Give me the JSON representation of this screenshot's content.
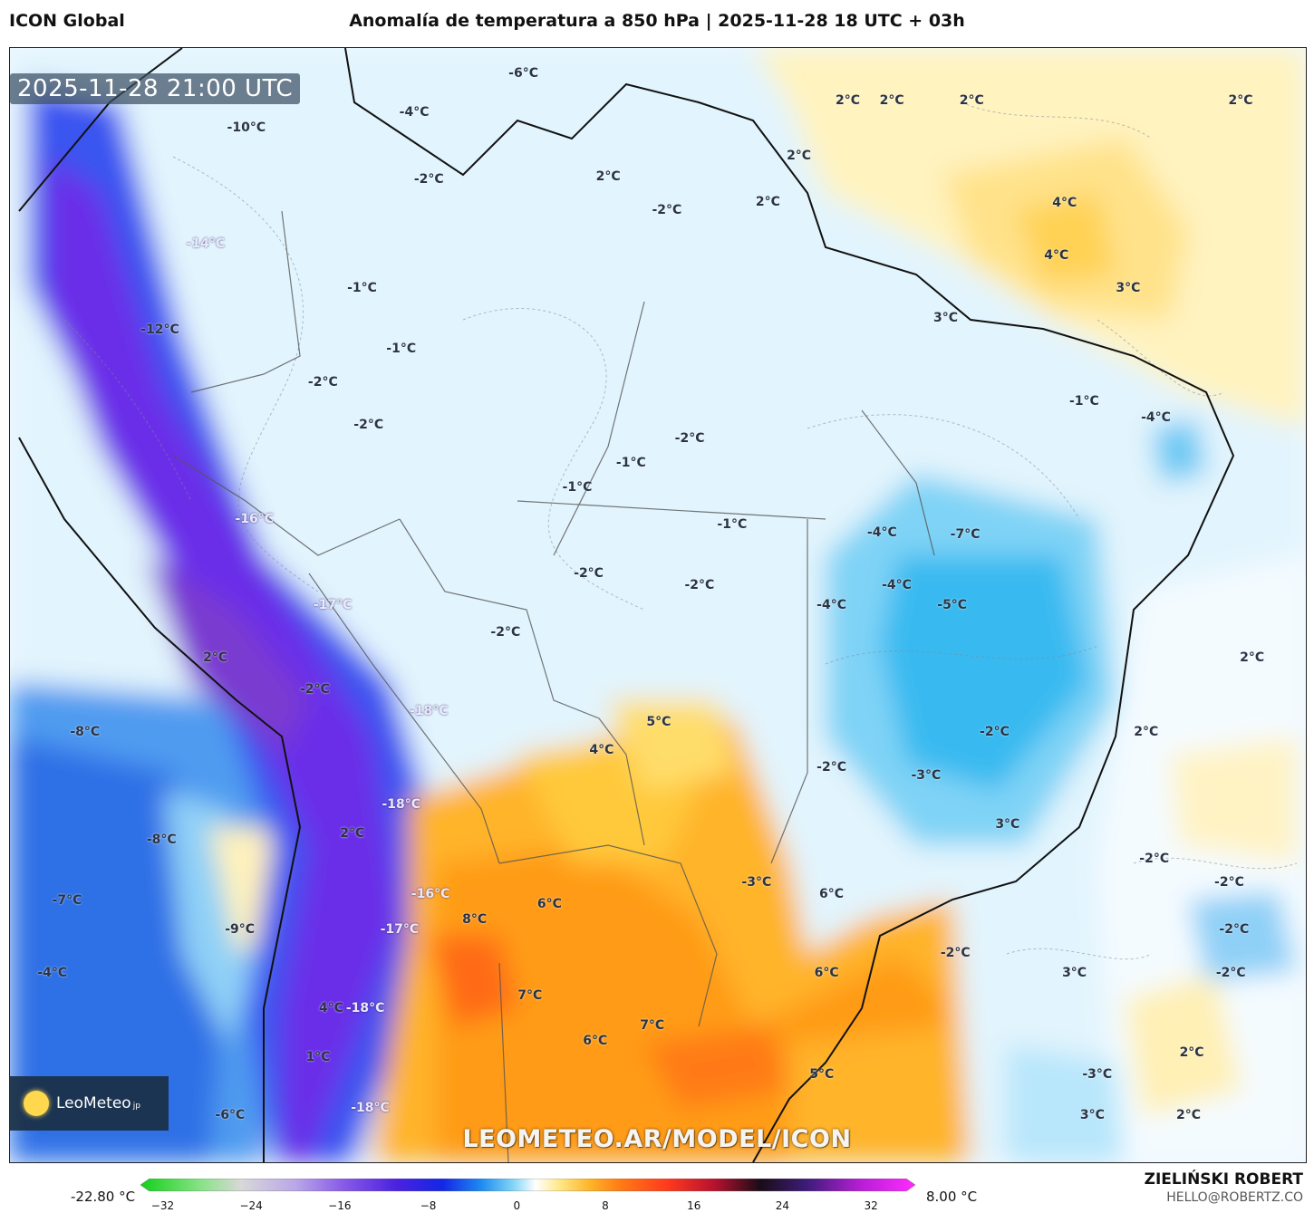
{
  "header": {
    "model_name": "ICON Global",
    "title": "Anomalía de temperatura a 850 hPa | 2025-11-28 18 UTC + 03h"
  },
  "map": {
    "timestamp": "2025-11-28 21:00 UTC",
    "watermark": "LEOMETEO.AR/MODEL/ICON",
    "labels": [
      {
        "text": "-6°C",
        "lon": -61.0,
        "lat": 12.0
      },
      {
        "text": "-4°C",
        "lon": -67.7,
        "lat": 9.7
      },
      {
        "text": "-10°C",
        "lon": -78.0,
        "lat": 8.8
      },
      {
        "text": "-2°C",
        "lon": -66.8,
        "lat": 5.7
      },
      {
        "text": "2°C",
        "lon": -55.8,
        "lat": 5.9
      },
      {
        "text": "-2°C",
        "lon": -52.2,
        "lat": 3.9
      },
      {
        "text": "2°C",
        "lon": -41.1,
        "lat": 10.4
      },
      {
        "text": "2°C",
        "lon": -38.4,
        "lat": 10.4
      },
      {
        "text": "2°C",
        "lon": -33.5,
        "lat": 10.4
      },
      {
        "text": "2°C",
        "lon": -17.0,
        "lat": 10.4
      },
      {
        "text": "2°C",
        "lon": -44.1,
        "lat": 7.1
      },
      {
        "text": "2°C",
        "lon": -46.0,
        "lat": 4.4
      },
      {
        "text": "4°C",
        "lon": -27.8,
        "lat": 4.3
      },
      {
        "text": "4°C",
        "lon": -28.3,
        "lat": 1.2
      },
      {
        "text": "3°C",
        "lon": -23.9,
        "lat": -0.7
      },
      {
        "text": "-14°C",
        "lon": -80.5,
        "lat": 1.9
      },
      {
        "text": "-1°C",
        "lon": -70.9,
        "lat": -0.7
      },
      {
        "text": "3°C",
        "lon": -35.1,
        "lat": -2.5
      },
      {
        "text": "-12°C",
        "lon": -83.3,
        "lat": -3.2
      },
      {
        "text": "-1°C",
        "lon": -68.5,
        "lat": -4.3
      },
      {
        "text": "-2°C",
        "lon": -73.3,
        "lat": -6.3
      },
      {
        "text": "-1°C",
        "lon": -26.6,
        "lat": -7.4
      },
      {
        "text": "-4°C",
        "lon": -22.2,
        "lat": -8.4
      },
      {
        "text": "-2°C",
        "lon": -70.5,
        "lat": -8.8
      },
      {
        "text": "-2°C",
        "lon": -50.8,
        "lat": -9.6
      },
      {
        "text": "-1°C",
        "lon": -54.4,
        "lat": -11.1
      },
      {
        "text": "-1°C",
        "lon": -57.7,
        "lat": -12.5
      },
      {
        "text": "-16°C",
        "lon": -77.5,
        "lat": -14.4
      },
      {
        "text": "-1°C",
        "lon": -48.2,
        "lat": -14.7
      },
      {
        "text": "-4°C",
        "lon": -39.0,
        "lat": -15.2
      },
      {
        "text": "-7°C",
        "lon": -33.9,
        "lat": -15.3
      },
      {
        "text": "-2°C",
        "lon": -57.0,
        "lat": -17.6
      },
      {
        "text": "-2°C",
        "lon": -50.2,
        "lat": -18.3
      },
      {
        "text": "-4°C",
        "lon": -38.1,
        "lat": -18.3
      },
      {
        "text": "-17°C",
        "lon": -72.7,
        "lat": -19.5
      },
      {
        "text": "-4°C",
        "lon": -42.1,
        "lat": -19.5
      },
      {
        "text": "-5°C",
        "lon": -34.7,
        "lat": -19.5
      },
      {
        "text": "-2°C",
        "lon": -62.1,
        "lat": -21.1
      },
      {
        "text": "2°C",
        "lon": -79.9,
        "lat": -22.6
      },
      {
        "text": "2°C",
        "lon": -16.3,
        "lat": -22.6
      },
      {
        "text": "-2°C",
        "lon": -73.8,
        "lat": -24.5
      },
      {
        "text": "5°C",
        "lon": -52.7,
        "lat": -26.4
      },
      {
        "text": "-18°C",
        "lon": -66.8,
        "lat": -25.8
      },
      {
        "text": "-8°C",
        "lon": -87.9,
        "lat": -27.0
      },
      {
        "text": "-2°C",
        "lon": -32.1,
        "lat": -27.0
      },
      {
        "text": "2°C",
        "lon": -22.8,
        "lat": -27.0
      },
      {
        "text": "4°C",
        "lon": -56.2,
        "lat": -28.1
      },
      {
        "text": "-2°C",
        "lon": -42.1,
        "lat": -29.1
      },
      {
        "text": "-3°C",
        "lon": -36.3,
        "lat": -29.6
      },
      {
        "text": "-18°C",
        "lon": -68.5,
        "lat": -31.3
      },
      {
        "text": "3°C",
        "lon": -31.3,
        "lat": -32.5
      },
      {
        "text": "2°C",
        "lon": -71.5,
        "lat": -33.0
      },
      {
        "text": "-8°C",
        "lon": -83.2,
        "lat": -33.4
      },
      {
        "text": "-2°C",
        "lon": -22.3,
        "lat": -34.5
      },
      {
        "text": "-3°C",
        "lon": -46.7,
        "lat": -35.9
      },
      {
        "text": "-2°C",
        "lon": -17.7,
        "lat": -35.9
      },
      {
        "text": "-16°C",
        "lon": -66.7,
        "lat": -36.6
      },
      {
        "text": "6°C",
        "lon": -42.1,
        "lat": -36.6
      },
      {
        "text": "-7°C",
        "lon": -89.0,
        "lat": -37.0
      },
      {
        "text": "8°C",
        "lon": -64.0,
        "lat": -38.1
      },
      {
        "text": "6°C",
        "lon": -59.4,
        "lat": -37.2
      },
      {
        "text": "-17°C",
        "lon": -68.6,
        "lat": -38.7
      },
      {
        "text": "-9°C",
        "lon": -78.4,
        "lat": -38.7
      },
      {
        "text": "-2°C",
        "lon": -17.4,
        "lat": -38.7
      },
      {
        "text": "-2°C",
        "lon": -34.5,
        "lat": -40.1
      },
      {
        "text": "-4°C",
        "lon": -89.9,
        "lat": -41.3
      },
      {
        "text": "6°C",
        "lon": -42.4,
        "lat": -41.3
      },
      {
        "text": "3°C",
        "lon": -27.2,
        "lat": -41.3
      },
      {
        "text": "-2°C",
        "lon": -17.6,
        "lat": -41.3
      },
      {
        "text": "7°C",
        "lon": -60.6,
        "lat": -42.6
      },
      {
        "text": "4°C",
        "lon": -72.8,
        "lat": -43.4
      },
      {
        "text": "-18°C",
        "lon": -70.7,
        "lat": -43.4
      },
      {
        "text": "7°C",
        "lon": -53.1,
        "lat": -44.4
      },
      {
        "text": "6°C",
        "lon": -56.6,
        "lat": -45.3
      },
      {
        "text": "1°C",
        "lon": -73.6,
        "lat": -46.3
      },
      {
        "text": "2°C",
        "lon": -20.0,
        "lat": -46.0
      },
      {
        "text": "5°C",
        "lon": -42.7,
        "lat": -47.3
      },
      {
        "text": "-3°C",
        "lon": -25.8,
        "lat": -47.3
      },
      {
        "text": "-6°C",
        "lon": -79.0,
        "lat": -49.7
      },
      {
        "text": "-18°C",
        "lon": -70.4,
        "lat": -49.3
      },
      {
        "text": "3°C",
        "lon": -26.1,
        "lat": -49.7
      },
      {
        "text": "2°C",
        "lon": -20.2,
        "lat": -49.7
      }
    ]
  },
  "legend": {
    "min_label": "-22.80 °C",
    "max_label": "8.00 °C",
    "ticks": [
      "−32",
      "−24",
      "−16",
      "−8",
      "0",
      "8",
      "16",
      "24",
      "32"
    ],
    "tick_values": [
      -32,
      -24,
      -16,
      -8,
      0,
      8,
      16,
      24,
      32
    ],
    "range": [
      -34,
      36
    ]
  },
  "logo": {
    "brand": "LeoMeteo",
    "suffix": "jp"
  },
  "credit": {
    "author": "ZIELIŃSKI ROBERT",
    "email": "HELLO@ROBERTZ.CO"
  }
}
